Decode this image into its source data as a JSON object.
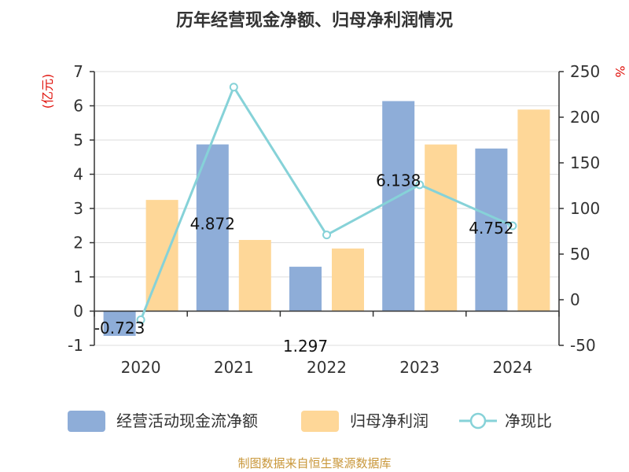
{
  "chart_data": {
    "type": "bar",
    "title": "历年经营现金净额、归母净利润情况",
    "categories": [
      "2020",
      "2021",
      "2022",
      "2023",
      "2024"
    ],
    "series": [
      {
        "name": "经营活动现金流净额",
        "type": "bar",
        "axis": "left",
        "color": "#8eadd8",
        "values": [
          -0.723,
          4.872,
          1.297,
          6.138,
          4.752
        ],
        "labels": [
          "-0.723",
          "4.872",
          "1.297",
          "6.138",
          "4.752"
        ]
      },
      {
        "name": "归母净利润",
        "type": "bar",
        "axis": "left",
        "color": "#fed798",
        "values": [
          3.25,
          2.08,
          1.83,
          4.87,
          5.89
        ]
      },
      {
        "name": "净现比",
        "type": "line",
        "axis": "right",
        "color": "#86d2d8",
        "values": [
          -22,
          233,
          71,
          126,
          81
        ]
      }
    ],
    "left_axis": {
      "unit": "(亿元)",
      "min": -1,
      "max": 7,
      "ticks": [
        -1,
        0,
        1,
        2,
        3,
        4,
        5,
        6,
        7
      ]
    },
    "right_axis": {
      "unit": "%",
      "min": -50,
      "max": 250,
      "ticks": [
        -50,
        0,
        50,
        100,
        150,
        200,
        250
      ]
    },
    "legend_position": "bottom",
    "source": "制图数据来自恒生聚源数据库"
  }
}
